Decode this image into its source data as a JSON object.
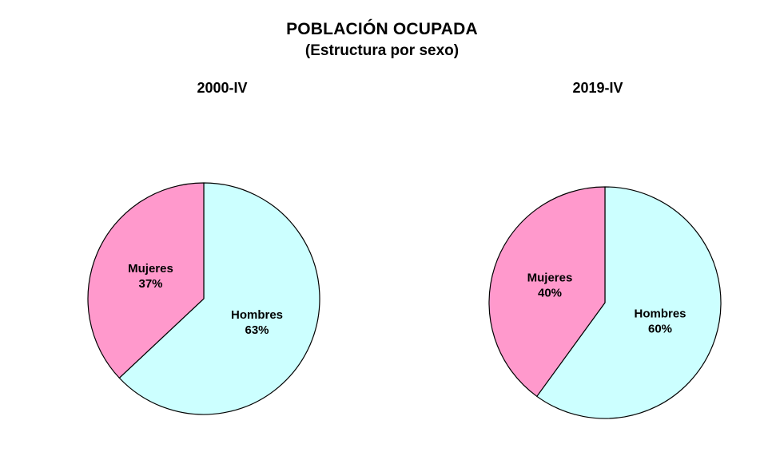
{
  "page": {
    "background_color": "#FFFFFF"
  },
  "header": {
    "title": "POBLACIÓN OCUPADA",
    "subtitle": "(Estructura por sexo)"
  },
  "chart_data": [
    {
      "type": "pie",
      "title": "2000-IV",
      "labels": [
        "Hombres",
        "Mujeres"
      ],
      "values": [
        63,
        37
      ],
      "unit": "%",
      "colors": [
        "#CCFFFF",
        "#FF99CC"
      ],
      "stroke_color": "#000000",
      "start_angle_deg": 0,
      "direction": "clockwise",
      "legend": "none",
      "data_labels": "name and percent inside slices"
    },
    {
      "type": "pie",
      "title": "2019-IV",
      "labels": [
        "Hombres",
        "Mujeres"
      ],
      "values": [
        60,
        40
      ],
      "unit": "%",
      "colors": [
        "#CCFFFF",
        "#FF99CC"
      ],
      "stroke_color": "#000000",
      "start_angle_deg": 0,
      "direction": "clockwise",
      "legend": "none",
      "data_labels": "name and percent inside slices"
    }
  ]
}
